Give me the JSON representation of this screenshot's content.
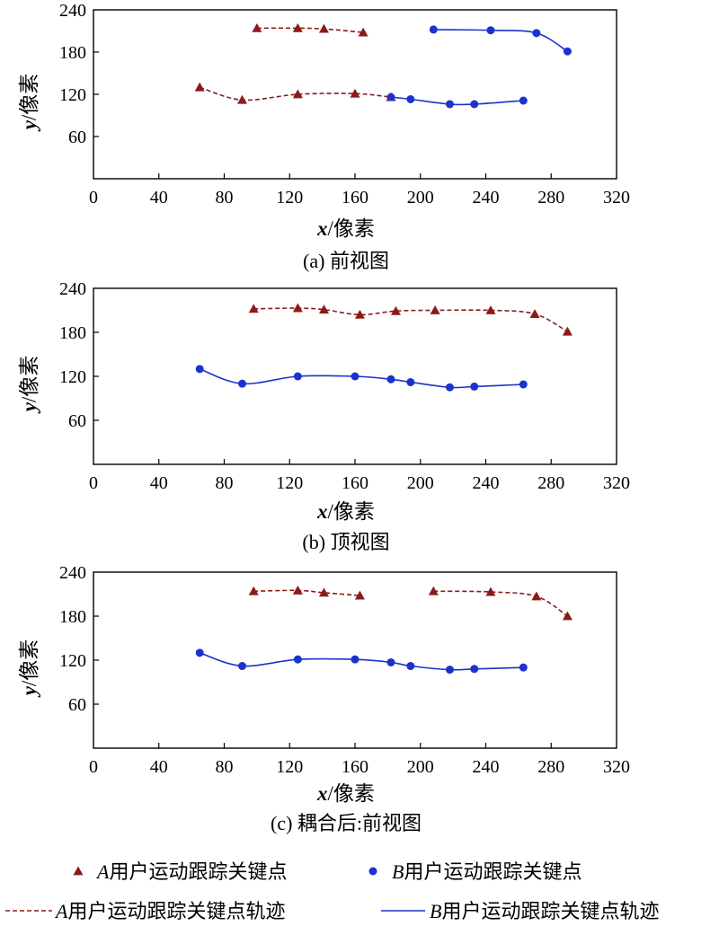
{
  "chart_data": [
    {
      "type": "line",
      "caption": "(a) 前视图",
      "xlabel_var": "x",
      "xlabel_unit": "/像素",
      "ylabel_var": "y",
      "ylabel_unit": "/像素",
      "xlim": [
        0,
        320
      ],
      "ylim": [
        0,
        240
      ],
      "xticks": [
        0,
        40,
        80,
        120,
        160,
        200,
        240,
        280,
        320
      ],
      "yticks": [
        60,
        120,
        180,
        240
      ],
      "grid": false,
      "series": [
        {
          "style": "A",
          "x": [
            100,
            125,
            141,
            165
          ],
          "y": [
            214,
            214,
            213,
            208
          ]
        },
        {
          "style": "A",
          "x": [
            65,
            91,
            125,
            160,
            182
          ],
          "y": [
            130,
            112,
            120,
            121,
            116
          ]
        },
        {
          "style": "B",
          "x": [
            182,
            194,
            218,
            233,
            263
          ],
          "y": [
            116,
            113,
            106,
            106,
            111
          ]
        },
        {
          "style": "B",
          "x": [
            208,
            243,
            271,
            290
          ],
          "y": [
            212,
            211,
            207,
            181
          ]
        }
      ]
    },
    {
      "type": "line",
      "caption": "(b) 顶视图",
      "xlabel_var": "x",
      "xlabel_unit": "/像素",
      "ylabel_var": "y",
      "ylabel_unit": "/像素",
      "xlim": [
        0,
        320
      ],
      "ylim": [
        0,
        240
      ],
      "xticks": [
        0,
        40,
        80,
        120,
        160,
        200,
        240,
        280,
        320
      ],
      "yticks": [
        60,
        120,
        180,
        240
      ],
      "grid": false,
      "series": [
        {
          "style": "A",
          "x": [
            98,
            125,
            141,
            163,
            185,
            209,
            243,
            270,
            290
          ],
          "y": [
            212,
            213,
            211,
            204,
            209,
            210,
            210,
            205,
            181
          ]
        },
        {
          "style": "B",
          "x": [
            65,
            91,
            125,
            160,
            182,
            194,
            218,
            233,
            263
          ],
          "y": [
            130,
            110,
            120,
            120,
            116,
            112,
            105,
            106,
            109
          ]
        }
      ]
    },
    {
      "type": "line",
      "caption": "(c) 耦合后:前视图",
      "xlabel_var": "x",
      "xlabel_unit": "/像素",
      "ylabel_var": "y",
      "ylabel_unit": "/像素",
      "xlim": [
        0,
        320
      ],
      "ylim": [
        0,
        240
      ],
      "xticks": [
        0,
        40,
        80,
        120,
        160,
        200,
        240,
        280,
        320
      ],
      "yticks": [
        60,
        120,
        180,
        240
      ],
      "grid": false,
      "series": [
        {
          "style": "A",
          "x": [
            98,
            125,
            141,
            163
          ],
          "y": [
            214,
            215,
            212,
            208
          ]
        },
        {
          "style": "A",
          "x": [
            208,
            243,
            271,
            290
          ],
          "y": [
            214,
            213,
            207,
            180
          ]
        },
        {
          "style": "B",
          "x": [
            65,
            91,
            125,
            160,
            182,
            194,
            218,
            233,
            263
          ],
          "y": [
            130,
            112,
            121,
            121,
            117,
            112,
            107,
            108,
            110
          ]
        }
      ]
    }
  ],
  "legend": [
    {
      "key": "a_marker",
      "kind": "marker-triangle",
      "var": "A",
      "text": "用户运动跟踪关键点"
    },
    {
      "key": "b_marker",
      "kind": "marker-circle",
      "var": "B",
      "text": "用户运动跟踪关键点"
    },
    {
      "key": "a_line",
      "kind": "line-dashed",
      "var": "A",
      "text": "用户运动跟踪关键点轨迹"
    },
    {
      "key": "b_line",
      "kind": "line-solid",
      "var": "B",
      "text": "用户运动跟踪关键点轨迹"
    }
  ],
  "colors": {
    "A": "#8b1a1a",
    "B": "#1a33cc",
    "axis": "#000000"
  }
}
